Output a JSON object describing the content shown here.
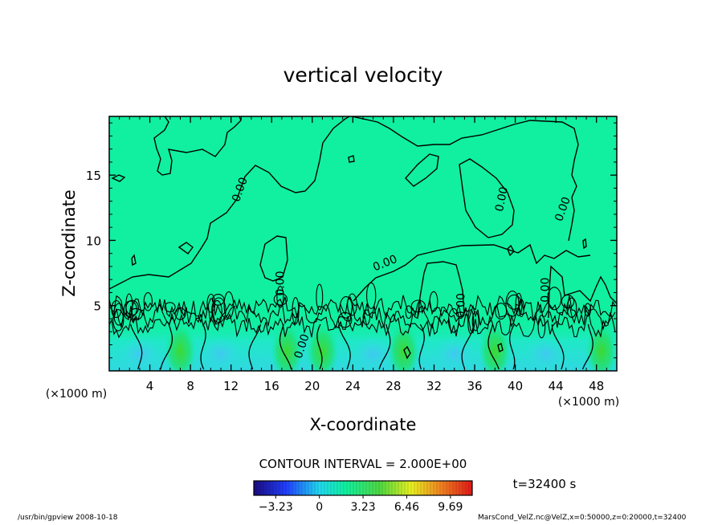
{
  "chart_data": {
    "type": "heatmap",
    "title": "vertical velocity",
    "xlabel": "X-coordinate",
    "ylabel": "Z-coordinate",
    "x_unit_left": "(×1000 m)",
    "x_unit_right": "(×1000 m)",
    "xlim": [
      0,
      50
    ],
    "ylim": [
      0,
      19.5
    ],
    "x_ticks": [
      4,
      8,
      12,
      16,
      20,
      24,
      28,
      32,
      36,
      40,
      44,
      48
    ],
    "y_ticks": [
      5,
      10,
      15
    ],
    "contour_interval_text": "CONTOUR INTERVAL = 2.000E+00",
    "time_text": "t=32400 s",
    "contour_labels": [
      {
        "text": "0.00",
        "x": 13.2,
        "z": 13.8,
        "angle": -70
      },
      {
        "text": "0.00",
        "x": 17.2,
        "z": 6.7,
        "angle": -90
      },
      {
        "text": "0.00",
        "x": 19.3,
        "z": 1.8,
        "angle": -72
      },
      {
        "text": "0.00",
        "x": 27.3,
        "z": 8.0,
        "angle": -22
      },
      {
        "text": "0.00",
        "x": 35.0,
        "z": 5.0,
        "angle": -90
      },
      {
        "text": "0.00",
        "x": 39.0,
        "z": 13.1,
        "angle": -78
      },
      {
        "text": "0.00",
        "x": 45.0,
        "z": 12.3,
        "angle": -70
      },
      {
        "text": "0.00",
        "x": 43.3,
        "z": 6.2,
        "angle": -90
      }
    ],
    "colorbar": {
      "range": [
        -4.85,
        11.3
      ],
      "tick_values": [
        -3.23,
        0,
        3.23,
        6.46,
        9.69
      ],
      "tick_labels": [
        "−3.23",
        "0",
        "3.23",
        "6.46",
        "9.69"
      ]
    }
  },
  "footer": {
    "left": "/usr/bin/gpview   2008-10-18",
    "right": "MarsCond_VelZ.nc@VelZ,x=0:50000,z=0:20000,t=32400"
  }
}
